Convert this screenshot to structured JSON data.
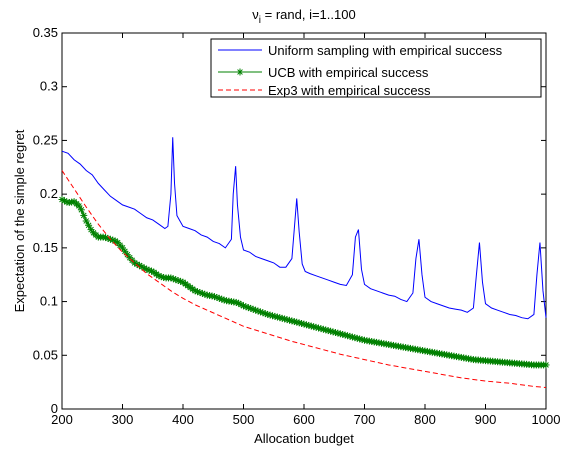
{
  "chart_data": {
    "type": "line",
    "title_main": "ν",
    "title_sub": "i",
    "title_rest": " = rand, i=1..100",
    "xlabel": "Allocation budget",
    "ylabel": "Expectation of the simple regret",
    "xlim": [
      200,
      1000
    ],
    "ylim": [
      0,
      0.35
    ],
    "xticks": [
      "200",
      "300",
      "400",
      "500",
      "600",
      "700",
      "800",
      "900",
      "1000"
    ],
    "xtick_values": [
      200,
      300,
      400,
      500,
      600,
      700,
      800,
      900,
      1000
    ],
    "yticks": [
      "0",
      "0.05",
      "0.1",
      "0.15",
      "0.2",
      "0.25",
      "0.3",
      "0.35"
    ],
    "ytick_values": [
      0,
      0.05,
      0.1,
      0.15,
      0.2,
      0.25,
      0.3,
      0.35
    ],
    "grid": false,
    "legend_position": "top-right",
    "series": [
      {
        "name": "Uniform sampling with empirical success",
        "color": "#0000ff",
        "style": "solid",
        "marker": "none",
        "x": [
          200,
          210,
          220,
          230,
          240,
          250,
          260,
          270,
          280,
          290,
          300,
          310,
          320,
          330,
          340,
          350,
          360,
          370,
          375,
          380,
          383,
          386,
          390,
          395,
          400,
          410,
          420,
          430,
          440,
          450,
          460,
          470,
          480,
          483,
          487,
          490,
          495,
          500,
          510,
          520,
          530,
          540,
          550,
          560,
          570,
          580,
          585,
          588,
          592,
          597,
          602,
          610,
          620,
          630,
          640,
          650,
          660,
          670,
          680,
          685,
          690,
          695,
          700,
          710,
          720,
          730,
          740,
          750,
          760,
          770,
          780,
          785,
          790,
          795,
          800,
          810,
          820,
          830,
          840,
          850,
          860,
          870,
          880,
          885,
          890,
          895,
          900,
          910,
          920,
          930,
          940,
          950,
          960,
          970,
          980,
          985,
          990,
          995,
          1000
        ],
        "y": [
          0.24,
          0.238,
          0.232,
          0.228,
          0.222,
          0.218,
          0.21,
          0.204,
          0.198,
          0.194,
          0.19,
          0.188,
          0.186,
          0.182,
          0.178,
          0.176,
          0.172,
          0.168,
          0.17,
          0.2,
          0.253,
          0.21,
          0.18,
          0.175,
          0.17,
          0.168,
          0.166,
          0.162,
          0.16,
          0.156,
          0.154,
          0.15,
          0.158,
          0.2,
          0.226,
          0.19,
          0.16,
          0.148,
          0.146,
          0.142,
          0.14,
          0.138,
          0.136,
          0.132,
          0.132,
          0.14,
          0.175,
          0.196,
          0.165,
          0.135,
          0.128,
          0.126,
          0.124,
          0.122,
          0.12,
          0.118,
          0.116,
          0.115,
          0.125,
          0.16,
          0.167,
          0.13,
          0.116,
          0.112,
          0.11,
          0.108,
          0.106,
          0.105,
          0.102,
          0.1,
          0.108,
          0.14,
          0.158,
          0.125,
          0.104,
          0.1,
          0.098,
          0.096,
          0.094,
          0.093,
          0.092,
          0.09,
          0.094,
          0.125,
          0.155,
          0.118,
          0.098,
          0.094,
          0.092,
          0.09,
          0.088,
          0.087,
          0.085,
          0.084,
          0.088,
          0.125,
          0.155,
          0.11,
          0.085
        ]
      },
      {
        "name": "UCB with empirical success",
        "color": "#008000",
        "style": "solid",
        "marker": "*",
        "x": [
          200,
          210,
          220,
          230,
          240,
          250,
          260,
          270,
          280,
          290,
          300,
          310,
          320,
          330,
          340,
          350,
          360,
          370,
          380,
          390,
          400,
          410,
          420,
          430,
          440,
          450,
          460,
          470,
          480,
          490,
          500,
          520,
          540,
          560,
          580,
          600,
          620,
          640,
          660,
          680,
          700,
          720,
          740,
          760,
          780,
          800,
          820,
          840,
          860,
          880,
          900,
          920,
          940,
          960,
          980,
          1000
        ],
        "y": [
          0.195,
          0.192,
          0.193,
          0.188,
          0.175,
          0.165,
          0.16,
          0.16,
          0.158,
          0.156,
          0.15,
          0.142,
          0.136,
          0.133,
          0.13,
          0.128,
          0.124,
          0.122,
          0.122,
          0.12,
          0.118,
          0.114,
          0.11,
          0.108,
          0.106,
          0.105,
          0.103,
          0.101,
          0.1,
          0.099,
          0.096,
          0.092,
          0.088,
          0.085,
          0.082,
          0.079,
          0.076,
          0.073,
          0.07,
          0.067,
          0.064,
          0.062,
          0.06,
          0.058,
          0.056,
          0.054,
          0.052,
          0.05,
          0.048,
          0.046,
          0.045,
          0.044,
          0.043,
          0.042,
          0.041,
          0.041
        ]
      },
      {
        "name": "Exp3 with empirical success",
        "color": "#ff0000",
        "style": "dashed",
        "marker": "none",
        "x": [
          200,
          220,
          240,
          260,
          280,
          300,
          320,
          340,
          360,
          380,
          400,
          420,
          440,
          460,
          480,
          500,
          540,
          580,
          620,
          660,
          700,
          740,
          780,
          820,
          860,
          900,
          940,
          980,
          1000
        ],
        "y": [
          0.222,
          0.205,
          0.188,
          0.172,
          0.158,
          0.146,
          0.136,
          0.126,
          0.118,
          0.11,
          0.103,
          0.097,
          0.092,
          0.087,
          0.082,
          0.077,
          0.07,
          0.063,
          0.057,
          0.051,
          0.046,
          0.041,
          0.037,
          0.033,
          0.029,
          0.026,
          0.024,
          0.021,
          0.02
        ]
      }
    ]
  }
}
